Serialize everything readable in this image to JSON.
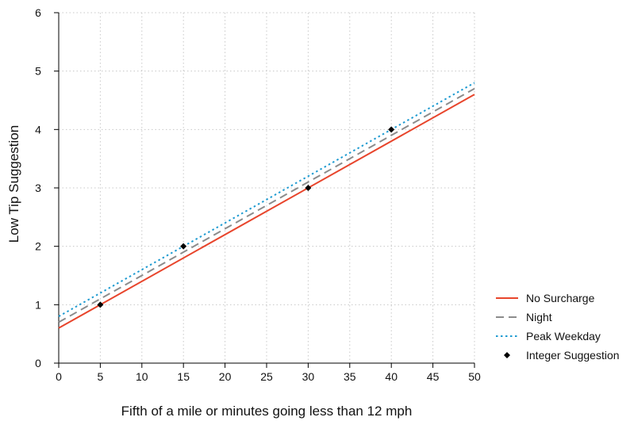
{
  "chart_data": {
    "type": "line",
    "xlabel": "Fifth of a mile or minutes going less than 12 mph",
    "ylabel": "Low Tip Suggestion",
    "xlim": [
      0,
      50
    ],
    "ylim": [
      0,
      6
    ],
    "x_ticks": [
      0,
      5,
      10,
      15,
      20,
      25,
      30,
      35,
      40,
      45,
      50
    ],
    "y_ticks": [
      0,
      1,
      2,
      3,
      4,
      5,
      6
    ],
    "grid": "dotted vertical and horizontal",
    "legend_position": "right",
    "series": [
      {
        "name": "No Surcharge",
        "style": "solid",
        "color": "#e8452c",
        "x": [
          0,
          50
        ],
        "y": [
          0.6,
          4.6
        ]
      },
      {
        "name": "Night",
        "style": "dashed",
        "color": "#8c8c8c",
        "x": [
          0,
          50
        ],
        "y": [
          0.7,
          4.7
        ]
      },
      {
        "name": "Peak Weekday",
        "style": "dotted",
        "color": "#1f9bd1",
        "x": [
          0,
          50
        ],
        "y": [
          0.8,
          4.8
        ]
      },
      {
        "name": "Integer Suggestion",
        "style": "diamond-marker",
        "color": "#000000",
        "x": [
          5,
          15,
          30,
          40
        ],
        "y": [
          1,
          2,
          3,
          4
        ]
      }
    ]
  }
}
